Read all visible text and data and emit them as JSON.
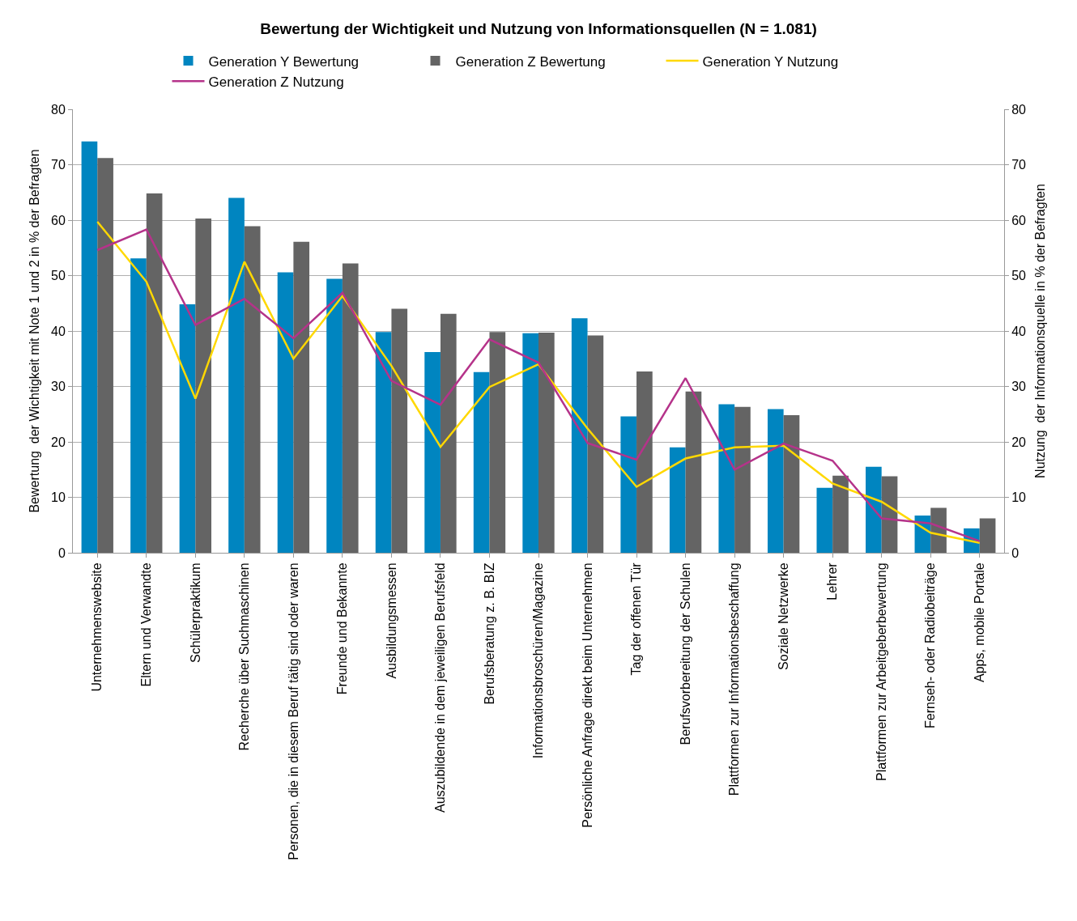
{
  "chart_data": {
    "type": "bar",
    "title": "Bewertung der Wichtigkeit und Nutzung von Informationsquellen (N = 1.081)",
    "ylabel": "Bewertung  der Wichtigkeit mit Note 1 und 2 in % der Befragten",
    "y2label": "Nutzung  der Informationsquelle in % der Befragten",
    "categories": [
      "Unternehmenswebsite",
      "Eltern und Verwandte",
      "Schülerpraktikum",
      "Recherche über Suchmaschinen",
      "Personen, die in diesem Beruf tätig sind oder waren",
      "Freunde und Bekannte",
      "Ausbildungsmessen",
      "Auszubildende in dem jeweiligen Berufsfeld",
      "Berufsberatung z. B. BIZ",
      "Informationsbroschüren/Magazine",
      "Persönliche Anfrage direkt beim Unternehmen",
      "Tag der offenen Tür",
      "Berufsvorbereitung der Schulen",
      "Plattformen zur Informationsbeschaffung",
      "Soziale Netzwerke",
      "Lehrer",
      "Plattformen zur Arbeitgeberbewertung",
      "Fernseh- oder Radiobeiträge",
      "Apps, mobile Portale"
    ],
    "series": [
      {
        "name": "Generation Y Bewertung",
        "color": "#0085c0",
        "values": [
          74.2,
          53.1,
          44.8,
          64.0,
          50.6,
          49.4,
          39.8,
          36.2,
          32.6,
          39.6,
          42.3,
          24.6,
          19.0,
          26.8,
          25.9,
          11.7,
          15.5,
          6.7,
          4.4
        ]
      },
      {
        "name": "Generation Z Bewertung",
        "color": "#646464",
        "values": [
          71.2,
          64.8,
          60.3,
          58.9,
          56.1,
          52.2,
          44.0,
          43.1,
          39.8,
          39.7,
          39.2,
          32.7,
          29.1,
          26.3,
          24.8,
          13.9,
          13.8,
          8.1,
          6.2
        ]
      },
      {
        "name": "Generation Y Nutzung",
        "type": "line",
        "axis": "y2",
        "color": "#ffd800",
        "values": [
          59.7,
          48.9,
          27.8,
          52.5,
          35.0,
          46.3,
          33.7,
          19.1,
          29.9,
          34.0,
          22.4,
          11.9,
          17.0,
          19.0,
          19.3,
          12.5,
          9.2,
          3.6,
          1.8
        ]
      },
      {
        "name": "Generation Z Nutzung",
        "type": "line",
        "axis": "y2",
        "color": "#b5338a",
        "values": [
          54.6,
          58.3,
          41.1,
          45.8,
          38.7,
          46.9,
          31.0,
          26.7,
          38.5,
          34.3,
          19.8,
          16.8,
          31.5,
          15.0,
          19.7,
          16.6,
          6.2,
          5.3,
          2.1
        ]
      }
    ],
    "ylim": [
      0,
      80
    ],
    "yticks": [
      0,
      10,
      20,
      30,
      40,
      50,
      60,
      70,
      80
    ],
    "y2lim": [
      0,
      80
    ],
    "y2ticks": [
      0,
      10,
      20,
      30,
      40,
      50,
      60,
      70,
      80
    ],
    "grid": "y",
    "legend": "top",
    "marker": "none",
    "line_style": "solid"
  }
}
